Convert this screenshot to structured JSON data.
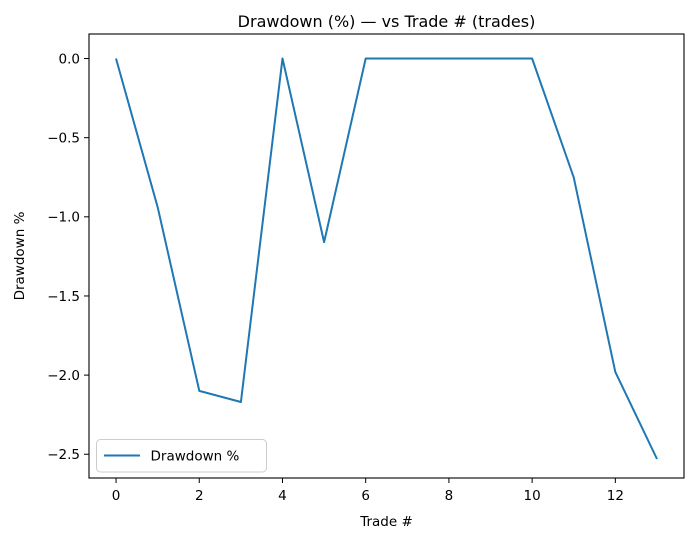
{
  "chart_data": {
    "type": "line",
    "title": "Drawdown (%) — vs Trade # (trades)",
    "xlabel": "Trade #",
    "ylabel": "Drawdown %",
    "x": [
      0,
      1,
      2,
      3,
      4,
      5,
      6,
      7,
      8,
      9,
      10,
      11,
      12,
      13
    ],
    "series": [
      {
        "name": "Drawdown %",
        "color": "#1f77b4",
        "values": [
          0.0,
          -0.94,
          -2.1,
          -2.17,
          0.0,
          -1.16,
          0.0,
          0.0,
          0.0,
          0.0,
          0.0,
          -0.75,
          -1.98,
          -2.53
        ]
      }
    ],
    "xlim": [
      -0.65,
      13.65
    ],
    "ylim": [
      -2.65,
      0.155
    ],
    "xticks": {
      "values": [
        0,
        2,
        4,
        6,
        8,
        10,
        12
      ],
      "labels": [
        "0",
        "2",
        "4",
        "6",
        "8",
        "10",
        "12"
      ]
    },
    "yticks": {
      "values": [
        0.0,
        -0.5,
        -1.0,
        -1.5,
        -2.0,
        -2.5
      ],
      "labels": [
        "0.0",
        "−0.5",
        "−1.0",
        "−1.5",
        "−2.0",
        "−2.5"
      ]
    },
    "grid": false,
    "legend": {
      "position": "lower left",
      "entries": [
        "Drawdown %"
      ]
    },
    "colors": {
      "line": "#1f77b4",
      "spine": "#000000",
      "legend_border": "#cccccc",
      "background": "#ffffff"
    }
  }
}
